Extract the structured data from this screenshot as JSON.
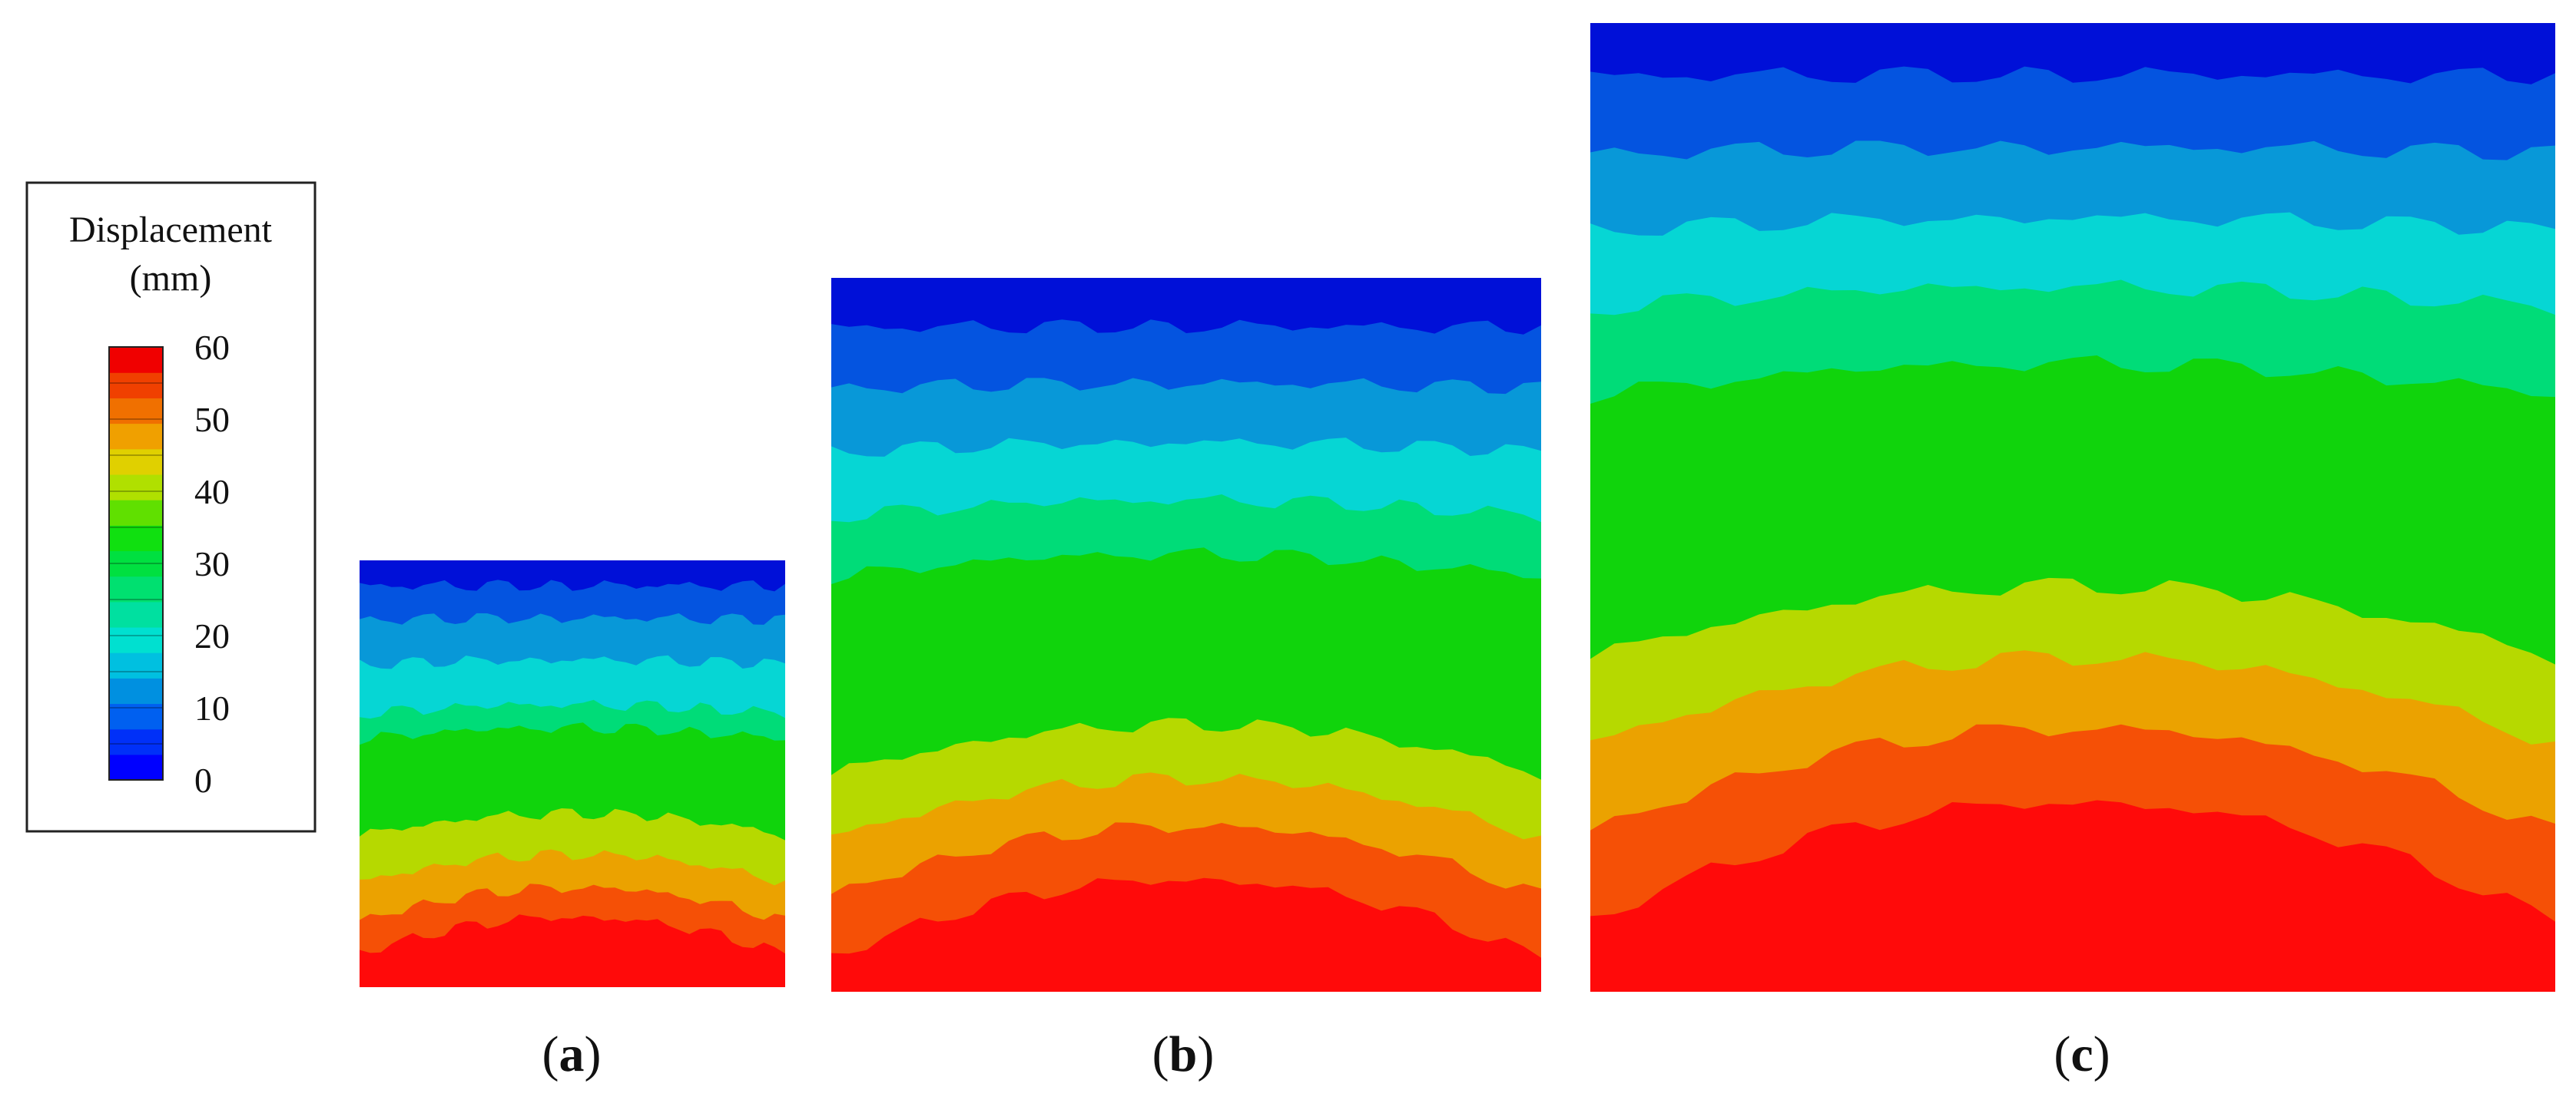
{
  "legend": {
    "title": "Displacement",
    "unit": "(mm)",
    "ticks": [
      "60",
      "50",
      "40",
      "30",
      "20",
      "10",
      "0"
    ],
    "min": 0,
    "max": 60
  },
  "band_colors": [
    "#0010d8",
    "#0454e0",
    "#0898d8",
    "#06d6d4",
    "#00dc78",
    "#10d40c",
    "#b6d900",
    "#eba200",
    "#f55006",
    "#ff0a0a"
  ],
  "colorbar_colors": [
    "#0000ff",
    "#0030f8",
    "#0060f0",
    "#0090e0",
    "#00c0e0",
    "#00e0d0",
    "#00e0a0",
    "#00e070",
    "#00e040",
    "#10e010",
    "#60e000",
    "#b0e000",
    "#e0d000",
    "#f0a000",
    "#f07000",
    "#f04000",
    "#f00000"
  ],
  "panels": [
    {
      "caption_open": "(",
      "caption_letter": "a",
      "caption_close": ")"
    },
    {
      "caption_open": "(",
      "caption_letter": "b",
      "caption_close": ")"
    },
    {
      "caption_open": "(",
      "caption_letter": "c",
      "caption_close": ")"
    }
  ]
}
